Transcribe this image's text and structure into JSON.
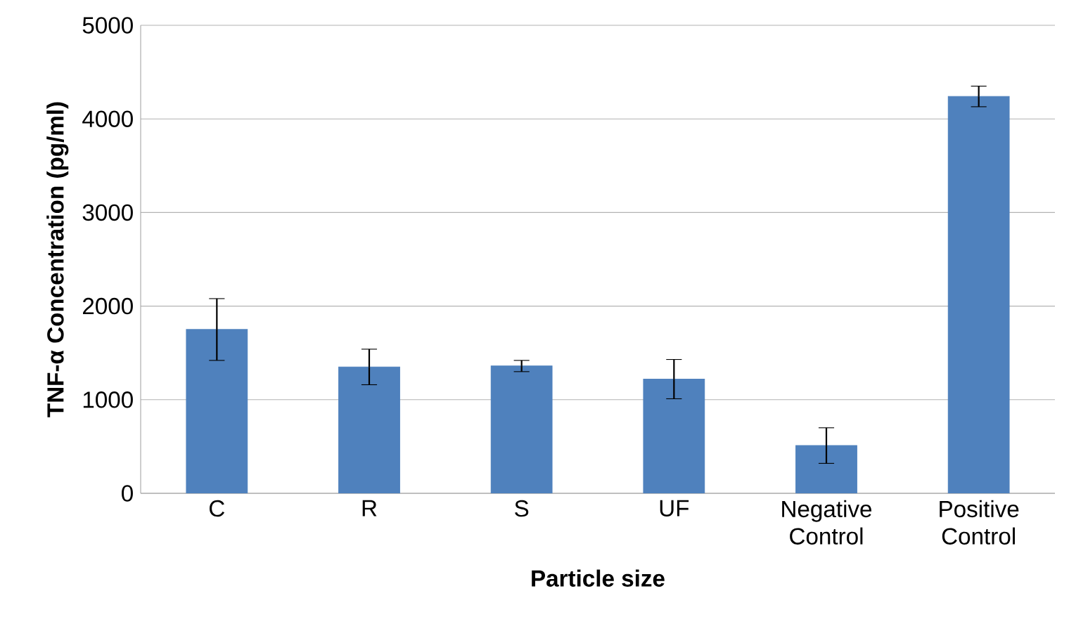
{
  "chart_data": {
    "type": "bar",
    "xlabel": "Particle size",
    "ylabel": "TNF-α Concentration (pg/ml)",
    "categories": [
      "C",
      "R",
      "S",
      "UF",
      "Negative Control",
      "Positive Control"
    ],
    "values": [
      1750,
      1350,
      1360,
      1220,
      510,
      4240
    ],
    "errors": [
      330,
      190,
      60,
      210,
      190,
      110
    ],
    "color": "#4f81bd",
    "ylim": [
      0,
      5000
    ],
    "yticks": [
      0,
      1000,
      2000,
      3000,
      4000,
      5000
    ],
    "grid": "y"
  }
}
